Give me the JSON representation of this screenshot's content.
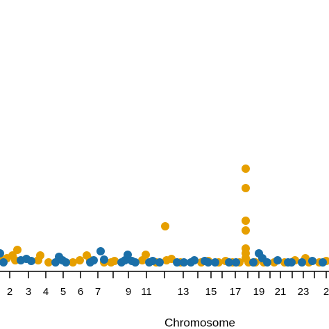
{
  "chart_data": {
    "type": "scatter",
    "x_label": "Chromosome",
    "xlim": [
      0,
      474
    ],
    "ylim": [
      0,
      38.5
    ],
    "xticks": [
      {
        "value": 14,
        "label": "2"
      },
      {
        "value": 41,
        "label": "3"
      },
      {
        "value": 66,
        "label": "4"
      },
      {
        "value": 91,
        "label": "5"
      },
      {
        "value": 116,
        "label": "6"
      },
      {
        "value": 141,
        "label": "7"
      },
      {
        "value": 163,
        "label": null
      },
      {
        "value": 185,
        "label": "9"
      },
      {
        "value": 211,
        "label": "11"
      },
      {
        "value": 237,
        "label": null
      },
      {
        "value": 264,
        "label": "13"
      },
      {
        "value": 285,
        "label": null
      },
      {
        "value": 304,
        "label": "15"
      },
      {
        "value": 320,
        "label": null
      },
      {
        "value": 339,
        "label": "17"
      },
      {
        "value": 357,
        "label": null
      },
      {
        "value": 373,
        "label": "19"
      },
      {
        "value": 389,
        "label": null
      },
      {
        "value": 404,
        "label": "21"
      },
      {
        "value": 421,
        "label": null
      },
      {
        "value": 437,
        "label": "23"
      },
      {
        "value": 453,
        "label": null
      },
      {
        "value": 470,
        "label": "2"
      }
    ],
    "series": [
      {
        "color": "#e69f00",
        "x": [
          2,
          10,
          18,
          25,
          22,
          55,
          58,
          70,
          105,
          115,
          125,
          130,
          150,
          160,
          165,
          205,
          210,
          225,
          238,
          240,
          247,
          260,
          290,
          300,
          315,
          325,
          335,
          345,
          354,
          354,
          354,
          354,
          354,
          354,
          354,
          358,
          368,
          380,
          395,
          410,
          425,
          440,
          445,
          460,
          470
        ],
        "values": [
          1.0,
          1.3,
          1.7,
          2.5,
          1.0,
          1.0,
          1.7,
          0.7,
          0.7,
          1.0,
          1.7,
          1.0,
          0.7,
          0.7,
          0.9,
          1.0,
          1.8,
          0.7,
          5.9,
          1.0,
          1.2,
          0.7,
          0.7,
          0.9,
          0.7,
          0.9,
          0.7,
          0.7,
          14.2,
          11.4,
          6.7,
          5.3,
          2.7,
          2.0,
          1.3,
          0.7,
          0.7,
          0.7,
          0.7,
          0.7,
          1.0,
          1.3,
          0.7,
          0.7,
          0.9
        ]
      },
      {
        "color": "#1b6fa8",
        "x": [
          0,
          5,
          30,
          38,
          45,
          80,
          85,
          90,
          95,
          130,
          135,
          145,
          150,
          175,
          180,
          184,
          190,
          195,
          215,
          220,
          230,
          255,
          265,
          275,
          280,
          295,
          300,
          310,
          330,
          340,
          365,
          373,
          378,
          385,
          400,
          415,
          420,
          435,
          450,
          465
        ],
        "values": [
          2.0,
          0.7,
          1.0,
          1.2,
          0.9,
          0.7,
          1.5,
          1.0,
          0.7,
          0.7,
          1.0,
          2.3,
          1.1,
          0.7,
          1.0,
          1.8,
          0.9,
          0.7,
          0.7,
          0.9,
          0.7,
          0.7,
          0.7,
          0.7,
          1.0,
          0.9,
          0.7,
          0.7,
          0.7,
          0.7,
          0.7,
          2.0,
          1.3,
          0.7,
          1.0,
          0.7,
          0.7,
          0.7,
          0.9,
          0.7
        ]
      }
    ]
  }
}
